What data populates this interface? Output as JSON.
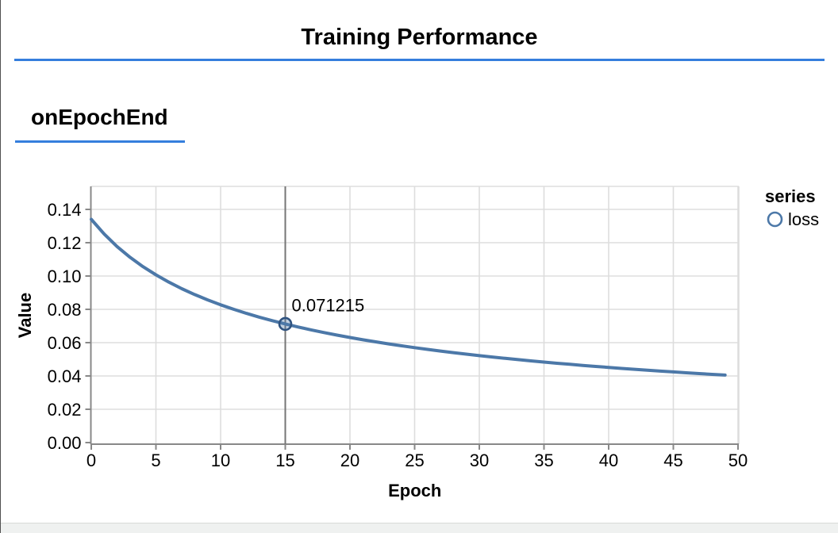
{
  "page": {
    "title": "Training Performance",
    "section_title": "onEpochEnd",
    "accent_color": "#357edd"
  },
  "chart_data": {
    "type": "line",
    "title": "",
    "xlabel": "Epoch",
    "ylabel": "Value",
    "xlim": [
      0,
      50
    ],
    "ylim": [
      0,
      0.15
    ],
    "grid": true,
    "x_ticks": [
      "0",
      "5",
      "10",
      "15",
      "20",
      "25",
      "30",
      "35",
      "40",
      "45",
      "50"
    ],
    "x_tick_values": [
      0,
      5,
      10,
      15,
      20,
      25,
      30,
      35,
      40,
      45,
      50
    ],
    "y_ticks": [
      "0.00",
      "0.02",
      "0.04",
      "0.06",
      "0.08",
      "0.10",
      "0.12",
      "0.14"
    ],
    "y_tick_values": [
      0.0,
      0.02,
      0.04,
      0.06,
      0.08,
      0.1,
      0.12,
      0.14
    ],
    "legend": {
      "title": "series",
      "position": "right",
      "items": [
        {
          "label": "loss",
          "color": "#4c78a8"
        }
      ]
    },
    "series": [
      {
        "name": "loss",
        "color": "#4c78a8",
        "x": [
          0,
          1,
          2,
          3,
          4,
          5,
          6,
          7,
          8,
          9,
          10,
          11,
          12,
          13,
          14,
          15,
          16,
          17,
          18,
          19,
          20,
          21,
          22,
          23,
          24,
          25,
          26,
          27,
          28,
          29,
          30,
          31,
          32,
          33,
          34,
          35,
          36,
          37,
          38,
          39,
          40,
          41,
          42,
          43,
          44,
          45,
          46,
          47,
          48,
          49
        ],
        "values": [
          0.134038,
          0.125175,
          0.117679,
          0.111238,
          0.105633,
          0.100701,
          0.096321,
          0.092401,
          0.088866,
          0.08566,
          0.082734,
          0.080054,
          0.077585,
          0.075304,
          0.073188,
          0.071215,
          0.069379,
          0.067658,
          0.066041,
          0.064522,
          0.063088,
          0.061735,
          0.060453,
          0.059238,
          0.058083,
          0.056985,
          0.055939,
          0.054941,
          0.053987,
          0.053075,
          0.052201,
          0.051363,
          0.05056,
          0.049787,
          0.049045,
          0.04833,
          0.047642,
          0.046978,
          0.046338,
          0.045719,
          0.045121,
          0.044543,
          0.043984,
          0.043443,
          0.042918,
          0.042409,
          0.041915,
          0.041436,
          0.040971,
          0.040519
        ]
      }
    ],
    "cursor": {
      "epoch": 15,
      "value": 0.071215,
      "label": "0.071215"
    },
    "colors": {
      "grid": "#dddddd",
      "axis": "#888888",
      "crosshair": "#767676",
      "text": "#000000"
    }
  }
}
